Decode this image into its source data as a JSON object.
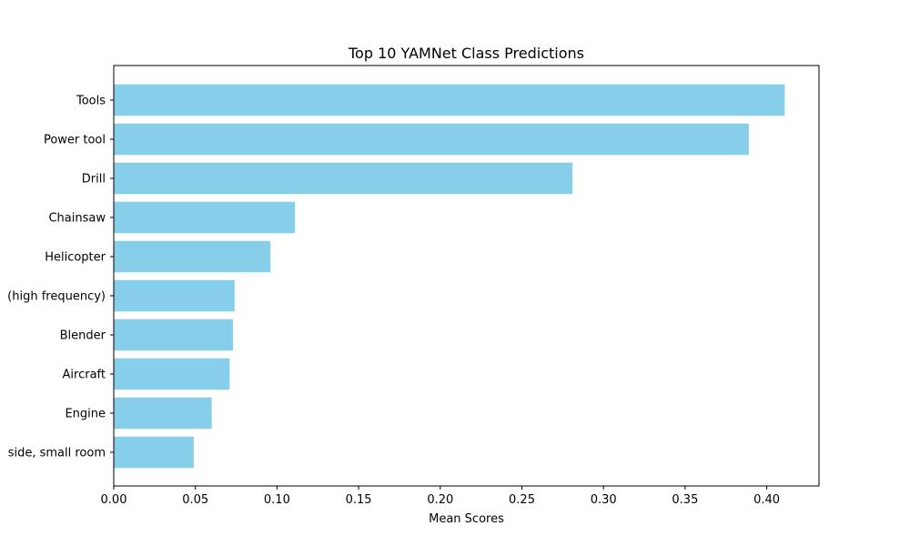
{
  "chart_data": {
    "type": "bar",
    "orientation": "horizontal",
    "title": "Top 10 YAMNet Class Predictions",
    "xlabel": "Mean Scores",
    "ylabel": "",
    "categories": [
      "Tools",
      "Power tool",
      "Drill",
      "Chainsaw",
      "Helicopter",
      "(high frequency)",
      "Blender",
      "Aircraft",
      "Engine",
      "side, small room"
    ],
    "values": [
      0.411,
      0.389,
      0.281,
      0.111,
      0.096,
      0.074,
      0.073,
      0.071,
      0.06,
      0.049
    ],
    "xlim": [
      0.0,
      0.432
    ],
    "xticks": [
      0.0,
      0.05,
      0.1,
      0.15,
      0.2,
      0.25,
      0.3,
      0.35,
      0.4
    ],
    "xtick_labels": [
      "0.00",
      "0.05",
      "0.10",
      "0.15",
      "0.20",
      "0.25",
      "0.30",
      "0.35",
      "0.40"
    ],
    "grid": false,
    "bar_color": "#87ceeb"
  }
}
